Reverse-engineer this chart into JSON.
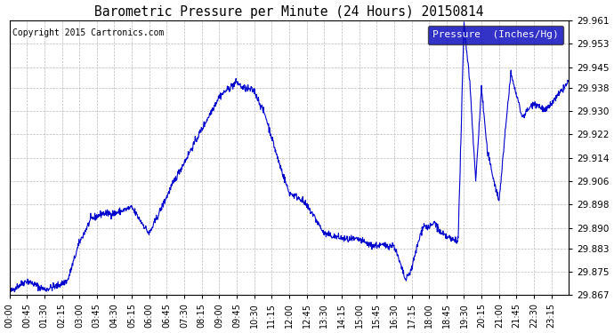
{
  "title": "Barometric Pressure per Minute (24 Hours) 20150814",
  "copyright": "Copyright 2015 Cartronics.com",
  "legend_label": "Pressure  (Inches/Hg)",
  "line_color": "#0000cc",
  "background_color": "#ffffff",
  "grid_color": "#bbbbbb",
  "ylim": [
    29.867,
    29.961
  ],
  "yticks": [
    29.867,
    29.875,
    29.883,
    29.89,
    29.898,
    29.906,
    29.914,
    29.922,
    29.93,
    29.938,
    29.945,
    29.953,
    29.961
  ],
  "xtick_labels": [
    "00:00",
    "00:45",
    "01:30",
    "02:15",
    "03:00",
    "03:45",
    "04:30",
    "05:15",
    "06:00",
    "06:45",
    "07:30",
    "08:15",
    "09:00",
    "09:45",
    "10:30",
    "11:15",
    "12:00",
    "12:45",
    "13:30",
    "14:15",
    "15:00",
    "15:45",
    "16:30",
    "17:15",
    "18:00",
    "18:45",
    "19:30",
    "20:15",
    "21:00",
    "21:45",
    "22:30",
    "23:15"
  ],
  "legend_bg": "#0000bb",
  "legend_text_color": "#ffffff",
  "keypoints_min": [
    0,
    20,
    45,
    90,
    120,
    150,
    180,
    210,
    240,
    270,
    315,
    360,
    420,
    480,
    540,
    585,
    600,
    630,
    660,
    690,
    720,
    750,
    780,
    810,
    840,
    870,
    900,
    930,
    960,
    990,
    1020,
    1035,
    1050,
    1065,
    1080,
    1095,
    1110,
    1125,
    1140,
    1155,
    1170,
    1185,
    1200,
    1215,
    1230,
    1260,
    1290,
    1320,
    1350,
    1380,
    1410,
    1439
  ],
  "keypoints_val": [
    29.868,
    29.87,
    29.872,
    29.869,
    29.87,
    29.872,
    29.885,
    29.893,
    29.895,
    29.895,
    29.897,
    29.888,
    29.905,
    29.92,
    29.935,
    29.94,
    29.938,
    29.937,
    29.928,
    29.914,
    29.902,
    29.9,
    29.895,
    29.888,
    29.887,
    29.886,
    29.886,
    29.884,
    29.884,
    29.884,
    29.872,
    29.876,
    29.884,
    29.891,
    29.89,
    29.892,
    29.888,
    29.887,
    29.886,
    29.886,
    29.96,
    29.94,
    29.906,
    29.938,
    29.916,
    29.899,
    29.943,
    29.928,
    29.933,
    29.93,
    29.935,
    29.94
  ]
}
